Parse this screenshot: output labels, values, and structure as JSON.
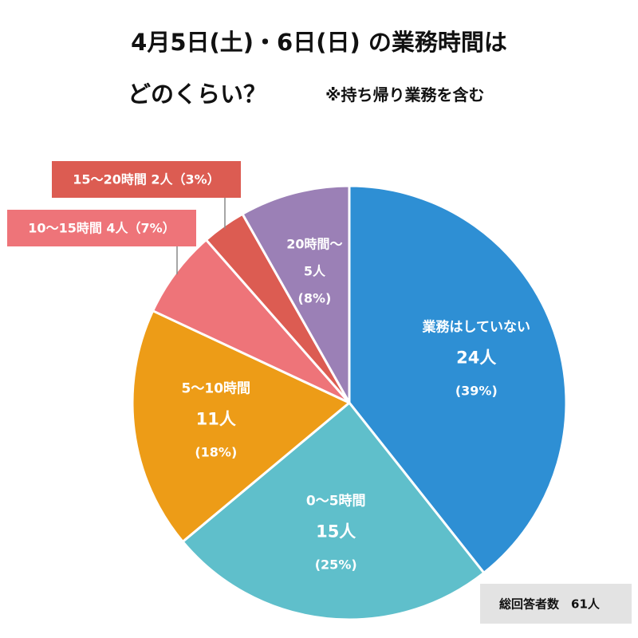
{
  "chart_data": {
    "type": "pie",
    "title": "4月5日(土)・6日(日) の業務時間は",
    "title_line2": "どのくらい？",
    "subtitle": "※持ち帰り業務を含む",
    "slices": [
      {
        "label": "業務はしていない",
        "count_label": "24人",
        "percent_label": "(39%)",
        "value": 24,
        "color": "#2e8fd4"
      },
      {
        "label": "0〜5時間",
        "count_label": "15人",
        "percent_label": "(25%)",
        "value": 15,
        "color": "#5fbfcb"
      },
      {
        "label": "5〜10時間",
        "count_label": "11人",
        "percent_label": "(18%)",
        "value": 11,
        "color": "#ed9c17"
      },
      {
        "label": "10〜15時間",
        "count_label": "4人",
        "percent_label": "(7%)",
        "value": 4,
        "color": "#ee7479"
      },
      {
        "label": "15〜20時間",
        "count_label": "2人",
        "percent_label": "(3%)",
        "value": 2,
        "color": "#dc5c52"
      },
      {
        "label": "20時間〜",
        "count_label": "5人",
        "percent_label": "(8%)",
        "value": 5,
        "color": "#9b80b6"
      }
    ],
    "callouts": [
      {
        "text": "15〜20時間 2人（3%）",
        "color": "#dc5c52"
      },
      {
        "text": "10〜15時間 4人（7%）",
        "color": "#ee7479"
      }
    ],
    "total_label": "総回答者数　61人",
    "total_box_color": "#e3e3e3"
  }
}
